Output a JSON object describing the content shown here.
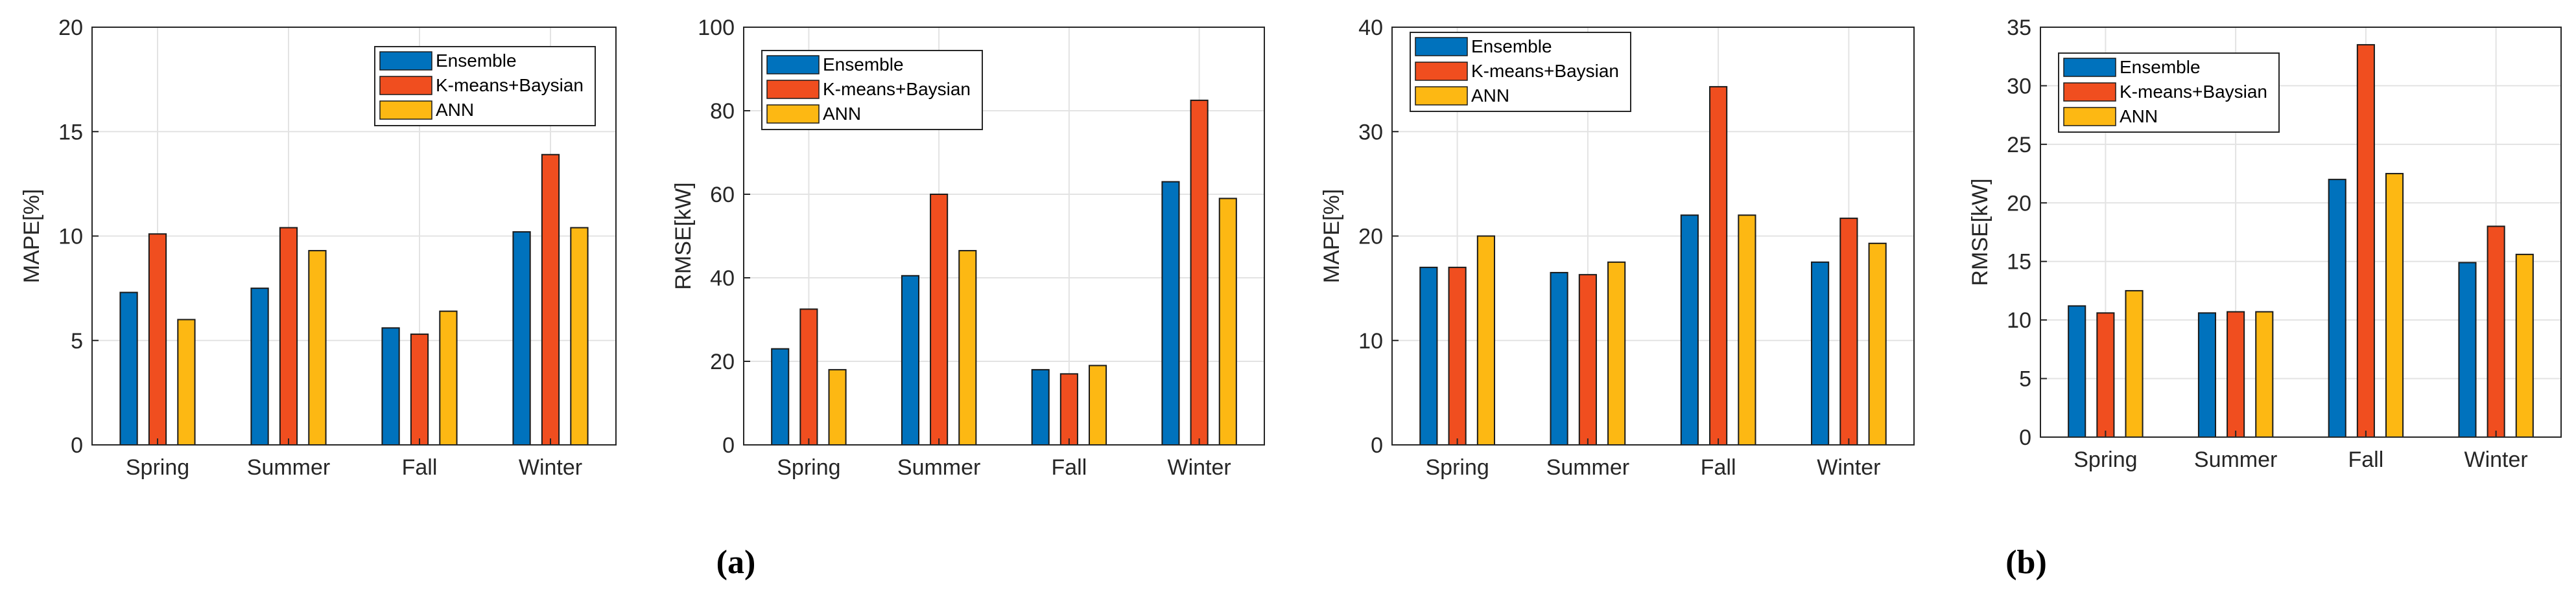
{
  "chart_data": [
    {
      "type": "bar",
      "categories": [
        "Spring",
        "Summer",
        "Fall",
        "Winter"
      ],
      "series": [
        {
          "name": "Ensemble",
          "values": [
            7.3,
            7.5,
            5.6,
            10.2
          ]
        },
        {
          "name": "K-means+Baysian",
          "values": [
            10.1,
            10.4,
            5.3,
            13.9
          ]
        },
        {
          "name": "ANN",
          "values": [
            6.0,
            9.3,
            6.4,
            10.4
          ]
        }
      ],
      "ylabel": "MAPE[%]",
      "xlabel": "",
      "ylim": [
        0,
        20
      ],
      "yticks": [
        0,
        5,
        10,
        15,
        20
      ],
      "legend": "top-right",
      "grid": true
    },
    {
      "type": "bar",
      "categories": [
        "Spring",
        "Summer",
        "Fall",
        "Winter"
      ],
      "series": [
        {
          "name": "Ensemble",
          "values": [
            23,
            40.5,
            18,
            63
          ]
        },
        {
          "name": "K-means+Baysian",
          "values": [
            32.5,
            60,
            17,
            82.5
          ]
        },
        {
          "name": "ANN",
          "values": [
            18,
            46.5,
            19,
            59
          ]
        }
      ],
      "ylabel": "RMSE[kW]",
      "xlabel": "",
      "ylim": [
        0,
        100
      ],
      "yticks": [
        0,
        20,
        40,
        60,
        80,
        100
      ],
      "legend": "top-left",
      "grid": true
    },
    {
      "type": "bar",
      "categories": [
        "Spring",
        "Summer",
        "Fall",
        "Winter"
      ],
      "series": [
        {
          "name": "Ensemble",
          "values": [
            17,
            16.5,
            22,
            17.5
          ]
        },
        {
          "name": "K-means+Baysian",
          "values": [
            17,
            16.3,
            34.3,
            21.7
          ]
        },
        {
          "name": "ANN",
          "values": [
            20,
            17.5,
            22,
            19.3
          ]
        }
      ],
      "ylabel": "MAPE[%]",
      "xlabel": "",
      "ylim": [
        0,
        40
      ],
      "yticks": [
        0,
        10,
        20,
        30,
        40
      ],
      "legend": "top-left",
      "grid": true
    },
    {
      "type": "bar",
      "categories": [
        "Spring",
        "Summer",
        "Fall",
        "Winter"
      ],
      "series": [
        {
          "name": "Ensemble",
          "values": [
            11.2,
            10.6,
            22,
            14.9
          ]
        },
        {
          "name": "K-means+Baysian",
          "values": [
            10.6,
            10.7,
            33.5,
            18
          ]
        },
        {
          "name": "ANN",
          "values": [
            12.5,
            10.7,
            22.5,
            15.6
          ]
        }
      ],
      "ylabel": "RMSE[kW]",
      "xlabel": "",
      "ylim": [
        0,
        35
      ],
      "yticks": [
        0,
        5,
        10,
        15,
        20,
        25,
        30,
        35
      ],
      "legend": "top-left",
      "grid": true
    }
  ],
  "colors": {
    "Ensemble": "#0072BD",
    "K-means+Baysian": "#F04E1F",
    "ANN": "#FDB813"
  },
  "captions": [
    "(a)",
    "(b)"
  ]
}
